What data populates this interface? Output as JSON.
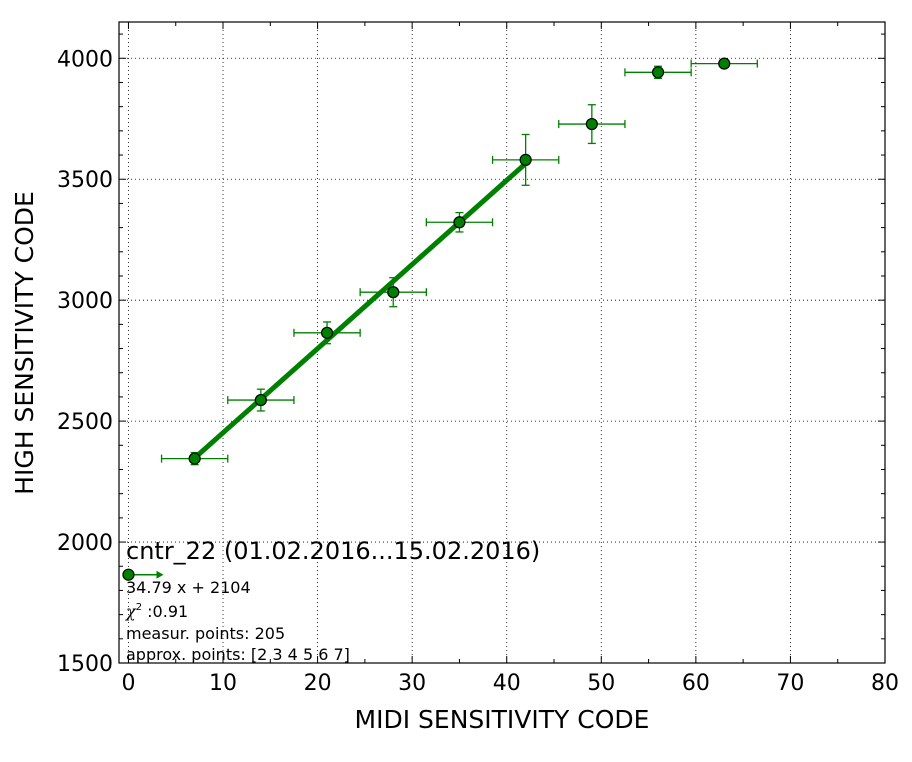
{
  "chart_data": {
    "type": "scatter",
    "title": "",
    "xlabel": "MIDI SENSITIVITY CODE",
    "ylabel": "HIGH SENSITIVITY CODE",
    "xlim": [
      -1,
      80
    ],
    "ylim": [
      1500,
      4150
    ],
    "xticks": [
      0,
      10,
      20,
      30,
      40,
      50,
      60,
      70,
      80
    ],
    "yticks": [
      1500,
      2000,
      2500,
      3000,
      3500,
      4000
    ],
    "grid": true,
    "color": "#008000",
    "marker_color": "#008000",
    "series": [
      {
        "points": [
          {
            "x": 7,
            "y": 2345,
            "xerr": 3.5,
            "yerr": 25
          },
          {
            "x": 14,
            "y": 2587,
            "xerr": 3.5,
            "yerr": 45
          },
          {
            "x": 21,
            "y": 2865,
            "xerr": 3.5,
            "yerr": 45
          },
          {
            "x": 28,
            "y": 3033,
            "xerr": 3.5,
            "yerr": 60
          },
          {
            "x": 35,
            "y": 3322,
            "xerr": 3.5,
            "yerr": 40
          },
          {
            "x": 42,
            "y": 3580,
            "xerr": 3.5,
            "yerr": 105
          },
          {
            "x": 49,
            "y": 3728,
            "xerr": 3.5,
            "yerr": 80
          },
          {
            "x": 56,
            "y": 3942,
            "xerr": 3.5,
            "yerr": 25
          },
          {
            "x": 63,
            "y": 3978,
            "xerr": 3.5,
            "yerr": 5
          }
        ]
      }
    ],
    "fit_line": {
      "slope": 34.79,
      "intercept": 2104,
      "x_range": [
        7,
        42
      ]
    },
    "legend_marker_point": {
      "x": 0,
      "y": 1865
    },
    "annotations": {
      "heading": "cntr_22 (01.02.2016...15.02.2016)",
      "equation": "34.79 x + 2104",
      "chi_symbol": "χ",
      "chi_exp": "2",
      "chi_value": " :0.91",
      "measur_points": "measur. points: 205",
      "approx_points": "approx. points: [2 3 4 5 6 7]"
    }
  }
}
